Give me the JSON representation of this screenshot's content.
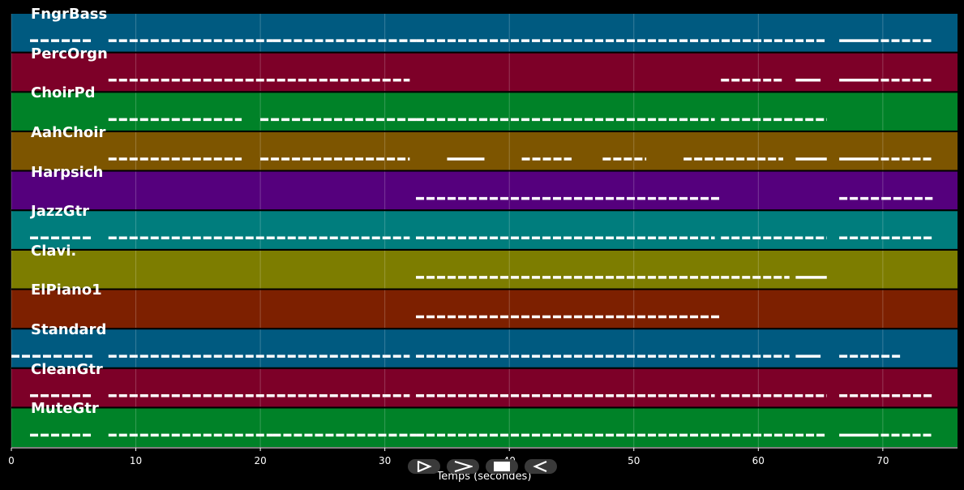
{
  "chart_data": {
    "type": "piano-roll",
    "xlabel": "Temps (secondes)",
    "xlim": [
      0,
      76
    ],
    "x_ticks": [
      0,
      10,
      20,
      30,
      40,
      50,
      60,
      70
    ],
    "grid": true,
    "tracks": [
      {
        "name": "FngrBass",
        "color": "#005a80",
        "segments": [
          [
            1.5,
            6.5
          ],
          [
            7.8,
            21
          ],
          [
            21,
            32.5
          ],
          [
            32.5,
            65.5
          ],
          [
            66.5,
            69
          ],
          [
            69,
            74
          ]
        ]
      },
      {
        "name": "PercOrgn",
        "color": "#7d0028",
        "segments": [
          [
            7.8,
            32
          ],
          [
            57,
            62
          ],
          [
            63,
            65
          ],
          [
            66.5,
            69
          ],
          [
            69,
            74
          ]
        ]
      },
      {
        "name": "ChoirPd",
        "color": "#008228",
        "segments": [
          [
            7.8,
            18.5
          ],
          [
            20,
            32.5
          ],
          [
            32.5,
            56.5
          ],
          [
            57,
            65.5
          ]
        ]
      },
      {
        "name": "AahChoir",
        "color": "#7d5500",
        "segments": [
          [
            7.8,
            18.5
          ],
          [
            20,
            32
          ],
          [
            35,
            38
          ],
          [
            41,
            45
          ],
          [
            47.5,
            51
          ],
          [
            54,
            62
          ],
          [
            63,
            65.5
          ],
          [
            66.5,
            69
          ],
          [
            69,
            74
          ]
        ]
      },
      {
        "name": "Harpsich",
        "color": "#55007d",
        "segments": [
          [
            32.5,
            57
          ],
          [
            66.5,
            70
          ],
          [
            70,
            74
          ]
        ]
      },
      {
        "name": "JazzGtr",
        "color": "#007d7d",
        "segments": [
          [
            1.5,
            6.5
          ],
          [
            7.8,
            32
          ],
          [
            32.5,
            56.5
          ],
          [
            57,
            65.5
          ],
          [
            66.5,
            74
          ]
        ]
      },
      {
        "name": "Clavi.",
        "color": "#7d7d00",
        "segments": [
          [
            32.5,
            57
          ],
          [
            57,
            62.5
          ],
          [
            63,
            65.5
          ]
        ]
      },
      {
        "name": "ElPiano1",
        "color": "#7d2000",
        "segments": [
          [
            32.5,
            57
          ]
        ]
      },
      {
        "name": "Standard",
        "color": "#005a80",
        "segments": [
          [
            0,
            6.5
          ],
          [
            7.8,
            32
          ],
          [
            32.5,
            56.5
          ],
          [
            57,
            62.5
          ],
          [
            63,
            65
          ],
          [
            66.5,
            71.5
          ]
        ]
      },
      {
        "name": "CleanGtr",
        "color": "#7d0028",
        "segments": [
          [
            1.5,
            6.5
          ],
          [
            7.8,
            32
          ],
          [
            32.5,
            56.5
          ],
          [
            57,
            65.5
          ],
          [
            66.5,
            74
          ]
        ]
      },
      {
        "name": "MuteGtr",
        "color": "#008228",
        "segments": [
          [
            1.5,
            6.5
          ],
          [
            7.8,
            21
          ],
          [
            21,
            32.5
          ],
          [
            32.5,
            65.5
          ],
          [
            66.5,
            69
          ],
          [
            69,
            74
          ]
        ]
      }
    ]
  },
  "controls": {
    "play_icon": "play-outline-icon",
    "forward_icon": "chevron-right-icon",
    "stop_icon": "stop-icon",
    "back_icon": "play-reverse-icon"
  }
}
